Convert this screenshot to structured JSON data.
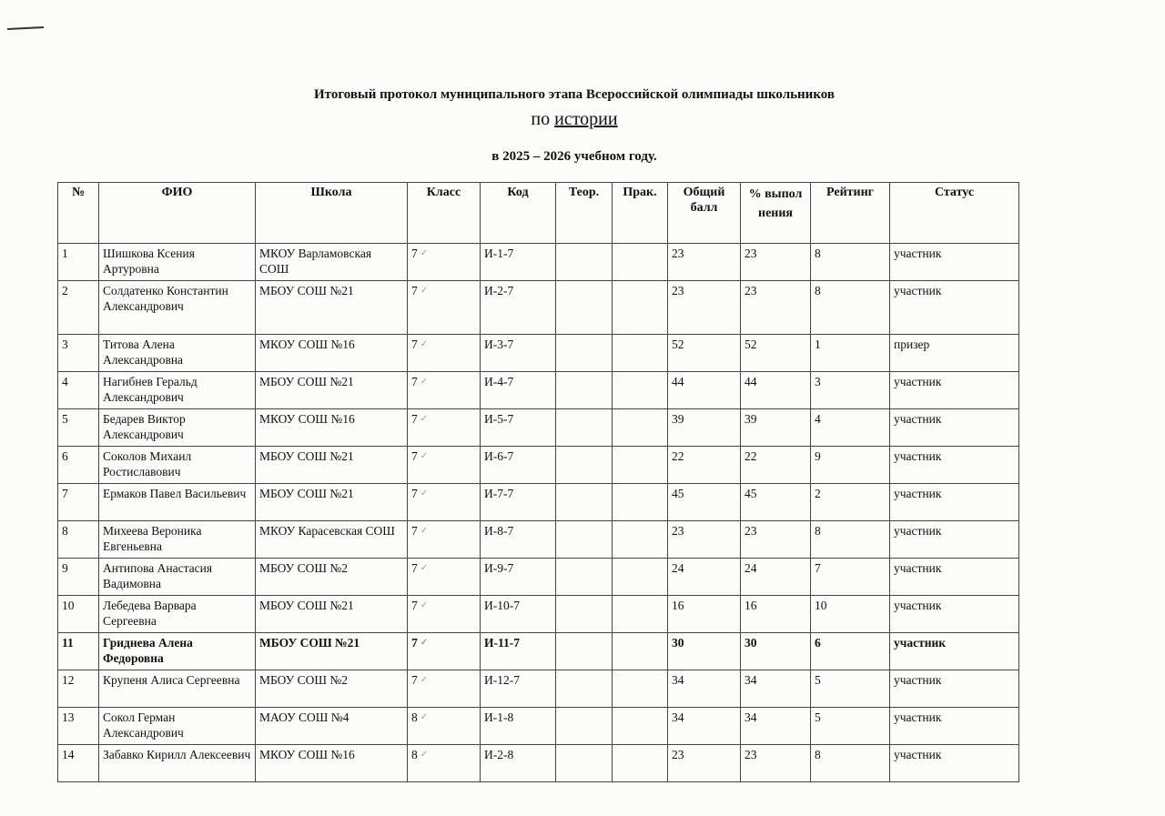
{
  "document": {
    "title_line1": "Итоговый протокол  муниципального этапа Всероссийской олимпиады школьников",
    "title_prefix": "по ",
    "subject": "истории",
    "year_line": "в 2025 – 2026 учебном году."
  },
  "table": {
    "headers": [
      "№",
      "ФИО",
      "Школа",
      "Класс",
      "Код",
      "Теор.",
      "Прак.",
      "Общий балл",
      "% выпол нения",
      "Рейтинг",
      "Статус"
    ],
    "check_mark": "✓",
    "rows": [
      {
        "n": "1",
        "name": "Шишкова Ксения Артуровна",
        "school": "МКОУ Варламовская СОШ",
        "grade": "7",
        "code": "И-1-7",
        "theory": "",
        "practice": "",
        "total": "23",
        "percent": "23",
        "rank": "8",
        "status": "участник"
      },
      {
        "n": "2",
        "name": "Солдатенко Константин Александрович",
        "school": "МБОУ СОШ №21",
        "grade": "7",
        "code": "И-2-7",
        "theory": "",
        "practice": "",
        "total": "23",
        "percent": "23",
        "rank": "8",
        "status": "участник"
      },
      {
        "n": "3",
        "name": "Титова Алена Александровна",
        "school": "МКОУ СОШ №16",
        "grade": "7",
        "code": "И-3-7",
        "theory": "",
        "practice": "",
        "total": "52",
        "percent": "52",
        "rank": "1",
        "status": "призер"
      },
      {
        "n": "4",
        "name": "Нагибнев Геральд Александрович",
        "school": "МБОУ СОШ №21",
        "grade": "7",
        "code": "И-4-7",
        "theory": "",
        "practice": "",
        "total": "44",
        "percent": "44",
        "rank": "3",
        "status": "участник"
      },
      {
        "n": "5",
        "name": "Бедарев Виктор Александрович",
        "school": "МКОУ СОШ №16",
        "grade": "7",
        "code": "И-5-7",
        "theory": "",
        "practice": "",
        "total": "39",
        "percent": "39",
        "rank": "4",
        "status": "участник"
      },
      {
        "n": "6",
        "name": "Соколов Михаил Ростиславович",
        "school": "МБОУ СОШ №21",
        "grade": "7",
        "code": "И-6-7",
        "theory": "",
        "practice": "",
        "total": "22",
        "percent": "22",
        "rank": "9",
        "status": "участник"
      },
      {
        "n": "7",
        "name": "Ермаков Павел Васильевич",
        "school": "МБОУ СОШ №21",
        "grade": "7",
        "code": "И-7-7",
        "theory": "",
        "practice": "",
        "total": "45",
        "percent": "45",
        "rank": "2",
        "status": "участник"
      },
      {
        "n": "8",
        "name": "Михеева Вероника Евгеньевна",
        "school": "МКОУ Карасевская СОШ",
        "grade": "7",
        "code": "И-8-7",
        "theory": "",
        "practice": "",
        "total": "23",
        "percent": "23",
        "rank": "8",
        "status": "участник"
      },
      {
        "n": "9",
        "name": "Антипова Анастасия Вадимовна",
        "school": "МБОУ СОШ №2",
        "grade": "7",
        "code": "И-9-7",
        "theory": "",
        "practice": "",
        "total": "24",
        "percent": "24",
        "rank": "7",
        "status": "участник"
      },
      {
        "n": "10",
        "name": "Лебедева Варвара Сергеевна",
        "school": "МБОУ СОШ №21",
        "grade": "7",
        "code": "И-10-7",
        "theory": "",
        "practice": "",
        "total": "16",
        "percent": "16",
        "rank": "10",
        "status": "участник"
      },
      {
        "n": "11",
        "name": "Гриднева Алена Федоровна",
        "school": "МБОУ СОШ №21",
        "grade": "7",
        "code": "И-11-7",
        "theory": "",
        "practice": "",
        "total": "30",
        "percent": "30",
        "rank": "6",
        "status": "участник"
      },
      {
        "n": "12",
        "name": "Крупеня Алиса Сергеевна",
        "school": "МБОУ СОШ №2",
        "grade": "7",
        "code": "И-12-7",
        "theory": "",
        "practice": "",
        "total": "34",
        "percent": "34",
        "rank": "5",
        "status": "участник"
      },
      {
        "n": "13",
        "name": "Сокол Герман Александрович",
        "school": "МАОУ СОШ №4",
        "grade": "8",
        "code": "И-1-8",
        "theory": "",
        "practice": "",
        "total": "34",
        "percent": "34",
        "rank": "5",
        "status": "участник"
      },
      {
        "n": "14",
        "name": "Забавко Кирилл Алексеевич",
        "school": "МКОУ СОШ №16",
        "grade": "8",
        "code": "И-2-8",
        "theory": "",
        "practice": "",
        "total": "23",
        "percent": "23",
        "rank": "8",
        "status": "участник"
      }
    ]
  }
}
